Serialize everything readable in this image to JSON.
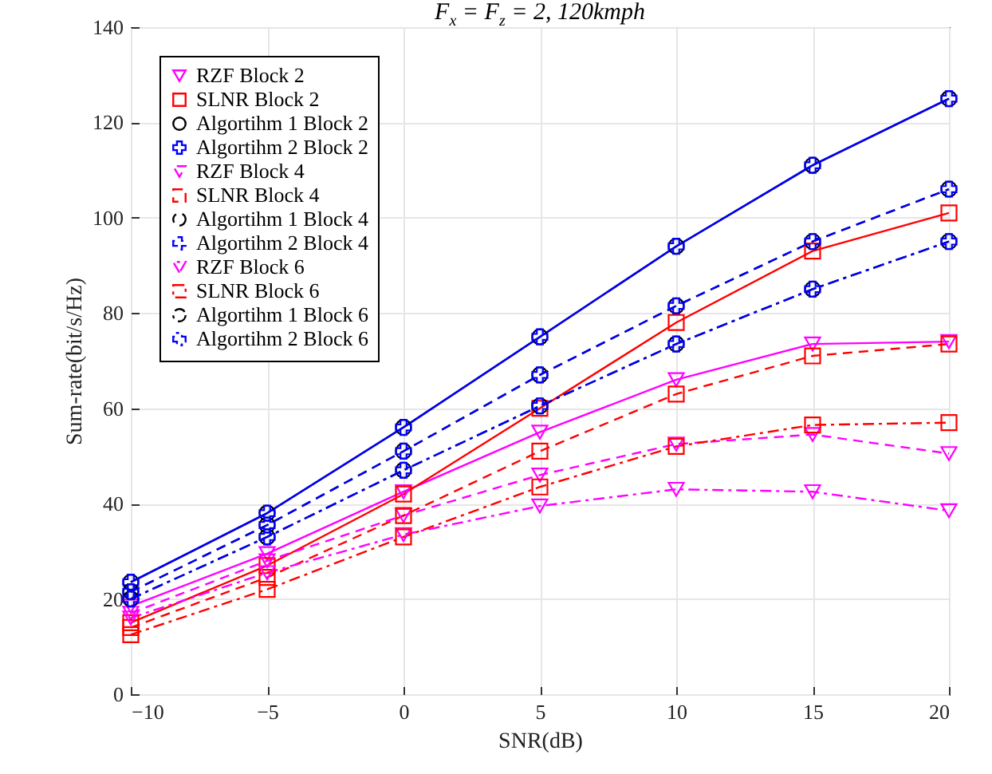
{
  "chart_data": {
    "type": "line",
    "title": "F$_{x}$ = F$_{z}$ = 2, 120kmph",
    "xlabel": "SNR(dB)",
    "ylabel": "Sum-rate(bit/s/Hz)",
    "x": [
      -10,
      -5,
      0,
      5,
      10,
      15,
      20
    ],
    "xlim": [
      -10,
      20
    ],
    "xticks": [
      -10,
      -5,
      0,
      5,
      10,
      15,
      20
    ],
    "ylim": [
      0,
      140
    ],
    "yticks": [
      0,
      20,
      40,
      60,
      80,
      100,
      120,
      140
    ],
    "grid": true,
    "legend": "top left",
    "series": [
      {
        "name": "RZF Block 2",
        "color": "#ff00ff",
        "marker": "triangle",
        "line_style": "solid",
        "values": [
          18.5,
          29.5,
          42.5,
          55,
          66,
          73.5,
          74
        ]
      },
      {
        "name": "SLNR Block 2",
        "color": "#ff0000",
        "marker": "square",
        "line_style": "solid",
        "values": [
          15,
          27,
          42,
          60,
          78,
          93,
          101
        ]
      },
      {
        "name": "Algortihm 1 Block 2",
        "color": "#000000",
        "marker": "circle",
        "line_style": "solid",
        "values": [
          23.5,
          38,
          56,
          75,
          94,
          111,
          125
        ]
      },
      {
        "name": "Algortihm 2 Block 2",
        "color": "#0000ff",
        "marker": "cross",
        "line_style": "solid",
        "values": [
          23.5,
          38,
          56,
          75,
          94,
          111,
          125
        ]
      },
      {
        "name": "RZF Block 4",
        "color": "#ff00ff",
        "marker": "triangle",
        "line_style": "dashed",
        "values": [
          17,
          28,
          37.5,
          46,
          52.5,
          54.5,
          50.5
        ]
      },
      {
        "name": "SLNR Block 4",
        "color": "#ff0000",
        "marker": "square",
        "line_style": "dashed",
        "values": [
          14,
          24.5,
          37.5,
          51,
          63,
          71,
          73.5
        ]
      },
      {
        "name": "Algortihm 1 Block 4",
        "color": "#000000",
        "marker": "circle",
        "line_style": "dashed",
        "values": [
          21.5,
          35.5,
          51,
          67,
          81.5,
          95,
          106
        ]
      },
      {
        "name": "Algortihm 2 Block 4",
        "color": "#0000ff",
        "marker": "cross",
        "line_style": "dashed",
        "values": [
          21.5,
          35.5,
          51,
          67,
          81.5,
          95,
          106
        ]
      },
      {
        "name": "RZF Block 6",
        "color": "#ff00ff",
        "marker": "triangle",
        "line_style": "dashdot",
        "values": [
          16,
          25.5,
          33.5,
          39.5,
          43,
          42.5,
          38.5
        ]
      },
      {
        "name": "SLNR Block 6",
        "color": "#ff0000",
        "marker": "square",
        "line_style": "dashdot",
        "values": [
          12.5,
          22,
          33,
          43.5,
          52,
          56.5,
          57
        ]
      },
      {
        "name": "Algortihm 1 Block 6",
        "color": "#000000",
        "marker": "circle",
        "line_style": "dashdot",
        "values": [
          20,
          33,
          47,
          60.5,
          73.5,
          85,
          95
        ]
      },
      {
        "name": "Algortihm 2 Block 6",
        "color": "#0000ff",
        "marker": "cross",
        "line_style": "dashdot",
        "values": [
          20,
          33,
          47,
          60.5,
          73.5,
          85,
          95
        ]
      }
    ]
  }
}
